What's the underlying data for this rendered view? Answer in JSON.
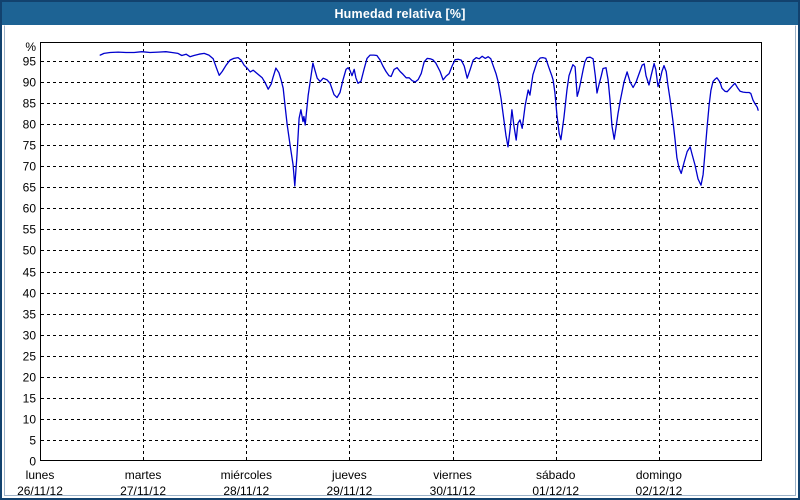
{
  "window": {
    "title": "Humedad relativa [%]"
  },
  "colors": {
    "title_bar_bg": "#1d6394",
    "frame_border": "#12426e",
    "inner_edge": "#9db3c9",
    "grid": "#000000",
    "text": "#000000",
    "series_line": "#0000cd"
  },
  "chart_data": {
    "type": "line",
    "title": "Humedad relativa [%]",
    "ylabel": "%",
    "ylim": [
      0,
      99.5
    ],
    "ytick_step": 5,
    "yticks": [
      0,
      5,
      10,
      15,
      20,
      25,
      30,
      35,
      40,
      45,
      50,
      55,
      60,
      65,
      70,
      75,
      80,
      85,
      90,
      95
    ],
    "grid": "dashed",
    "legend": "none",
    "x_hours_range": [
      0,
      168
    ],
    "x_days": [
      {
        "name": "lunes",
        "date": "26/11/12"
      },
      {
        "name": "martes",
        "date": "27/11/12"
      },
      {
        "name": "miércoles",
        "date": "28/11/12"
      },
      {
        "name": "jueves",
        "date": "29/11/12"
      },
      {
        "name": "viernes",
        "date": "30/11/12"
      },
      {
        "name": "sábado",
        "date": "01/12/12"
      },
      {
        "name": "domingo",
        "date": "02/12/12"
      }
    ],
    "line_color": "#0000cd",
    "series": [
      {
        "name": "Humedad relativa",
        "unit": "%",
        "points": [
          [
            14.0,
            96.4
          ],
          [
            14.9,
            96.8
          ],
          [
            16.3,
            97.0
          ],
          [
            18.2,
            97.1
          ],
          [
            20.0,
            97.0
          ],
          [
            21.9,
            97.0
          ],
          [
            23.7,
            97.2
          ],
          [
            25.6,
            97.0
          ],
          [
            27.5,
            97.1
          ],
          [
            29.3,
            97.2
          ],
          [
            30.7,
            97.0
          ],
          [
            32.1,
            96.8
          ],
          [
            33.0,
            96.3
          ],
          [
            34.0,
            96.6
          ],
          [
            34.9,
            96.0
          ],
          [
            35.8,
            96.3
          ],
          [
            37.0,
            96.6
          ],
          [
            38.2,
            96.8
          ],
          [
            39.3,
            96.4
          ],
          [
            40.3,
            95.5
          ],
          [
            41.0,
            93.5
          ],
          [
            41.7,
            91.6
          ],
          [
            42.4,
            92.5
          ],
          [
            43.3,
            94.0
          ],
          [
            44.2,
            95.2
          ],
          [
            45.1,
            95.6
          ],
          [
            46.1,
            95.8
          ],
          [
            46.8,
            95.2
          ],
          [
            47.5,
            94.0
          ],
          [
            48.2,
            93.3
          ],
          [
            48.9,
            92.4
          ],
          [
            49.6,
            92.8
          ],
          [
            50.3,
            92.2
          ],
          [
            51.0,
            91.6
          ],
          [
            51.7,
            91.0
          ],
          [
            52.4,
            89.8
          ],
          [
            53.1,
            88.3
          ],
          [
            53.8,
            89.5
          ],
          [
            54.2,
            91.0
          ],
          [
            54.9,
            93.3
          ],
          [
            55.6,
            92.2
          ],
          [
            56.1,
            90.5
          ],
          [
            56.6,
            88.5
          ],
          [
            57.0,
            84.5
          ],
          [
            57.5,
            80.0
          ],
          [
            58.2,
            75.0
          ],
          [
            58.9,
            70.3
          ],
          [
            59.3,
            65.3
          ],
          [
            59.8,
            72.7
          ],
          [
            60.3,
            81.4
          ],
          [
            60.7,
            83.4
          ],
          [
            61.2,
            80.6
          ],
          [
            61.4,
            81.8
          ],
          [
            61.7,
            79.8
          ],
          [
            62.4,
            86.9
          ],
          [
            63.1,
            91.7
          ],
          [
            63.5,
            94.5
          ],
          [
            64.5,
            90.9
          ],
          [
            65.2,
            90.1
          ],
          [
            65.9,
            90.9
          ],
          [
            66.8,
            90.5
          ],
          [
            67.5,
            89.7
          ],
          [
            68.4,
            87.0
          ],
          [
            69.1,
            86.3
          ],
          [
            69.8,
            87.5
          ],
          [
            70.5,
            90.5
          ],
          [
            71.2,
            93.0
          ],
          [
            71.7,
            93.4
          ],
          [
            72.1,
            92.8
          ],
          [
            72.6,
            91.5
          ],
          [
            73.1,
            93.0
          ],
          [
            73.5,
            91.0
          ],
          [
            74.0,
            89.7
          ],
          [
            74.7,
            90.2
          ],
          [
            75.4,
            93.0
          ],
          [
            76.1,
            95.6
          ],
          [
            76.8,
            96.4
          ],
          [
            77.7,
            96.4
          ],
          [
            78.4,
            96.3
          ],
          [
            79.1,
            95.3
          ],
          [
            79.8,
            93.8
          ],
          [
            80.5,
            92.5
          ],
          [
            81.2,
            91.5
          ],
          [
            81.7,
            91.3
          ],
          [
            82.4,
            93.0
          ],
          [
            83.1,
            93.4
          ],
          [
            83.8,
            92.5
          ],
          [
            84.5,
            91.8
          ],
          [
            85.2,
            91.0
          ],
          [
            85.9,
            91.0
          ],
          [
            86.6,
            90.3
          ],
          [
            87.3,
            90.0
          ],
          [
            88.0,
            90.6
          ],
          [
            88.7,
            92.0
          ],
          [
            89.4,
            94.8
          ],
          [
            90.1,
            95.6
          ],
          [
            90.8,
            95.5
          ],
          [
            91.4,
            95.3
          ],
          [
            92.1,
            94.5
          ],
          [
            93.1,
            92.5
          ],
          [
            93.8,
            90.5
          ],
          [
            94.5,
            91.4
          ],
          [
            95.2,
            92.0
          ],
          [
            95.9,
            93.8
          ],
          [
            96.6,
            95.3
          ],
          [
            97.3,
            95.4
          ],
          [
            98.0,
            95.2
          ],
          [
            98.7,
            93.8
          ],
          [
            99.4,
            90.9
          ],
          [
            100.1,
            93.0
          ],
          [
            100.8,
            95.2
          ],
          [
            101.5,
            95.8
          ],
          [
            102.2,
            95.5
          ],
          [
            102.9,
            96.1
          ],
          [
            103.6,
            95.6
          ],
          [
            104.3,
            96.0
          ],
          [
            104.9,
            95.5
          ],
          [
            105.4,
            94.0
          ],
          [
            106.1,
            92.0
          ],
          [
            106.6,
            90.1
          ],
          [
            107.3,
            86.0
          ],
          [
            108.0,
            80.6
          ],
          [
            108.4,
            77.4
          ],
          [
            108.9,
            74.6
          ],
          [
            109.4,
            79.0
          ],
          [
            109.8,
            83.4
          ],
          [
            110.3,
            79.5
          ],
          [
            110.8,
            76.2
          ],
          [
            111.2,
            80.2
          ],
          [
            111.7,
            81.0
          ],
          [
            112.2,
            79.0
          ],
          [
            112.9,
            84.5
          ],
          [
            113.6,
            88.1
          ],
          [
            114.0,
            86.9
          ],
          [
            114.7,
            91.7
          ],
          [
            115.7,
            94.9
          ],
          [
            116.4,
            95.7
          ],
          [
            117.0,
            95.8
          ],
          [
            117.7,
            95.6
          ],
          [
            118.4,
            93.5
          ],
          [
            119.1,
            91.5
          ],
          [
            119.4,
            90.5
          ],
          [
            119.8,
            87.5
          ],
          [
            120.3,
            82.0
          ],
          [
            120.8,
            77.8
          ],
          [
            121.2,
            76.3
          ],
          [
            121.9,
            81.5
          ],
          [
            122.6,
            88.0
          ],
          [
            123.1,
            91.5
          ],
          [
            123.6,
            93.0
          ],
          [
            124.0,
            94.1
          ],
          [
            124.5,
            93.6
          ],
          [
            125.0,
            86.6
          ],
          [
            125.4,
            88.0
          ],
          [
            125.9,
            90.5
          ],
          [
            126.4,
            93.0
          ],
          [
            126.8,
            94.8
          ],
          [
            127.3,
            95.8
          ],
          [
            128.0,
            95.9
          ],
          [
            128.7,
            95.5
          ],
          [
            129.2,
            91.5
          ],
          [
            129.6,
            87.4
          ],
          [
            130.1,
            89.5
          ],
          [
            130.6,
            91.5
          ],
          [
            131.0,
            93.2
          ],
          [
            131.7,
            93.4
          ],
          [
            132.2,
            90.5
          ],
          [
            132.6,
            86.0
          ],
          [
            133.1,
            79.5
          ],
          [
            133.6,
            76.4
          ],
          [
            134.0,
            79.0
          ],
          [
            134.5,
            82.5
          ],
          [
            135.0,
            85.5
          ],
          [
            135.4,
            87.5
          ],
          [
            135.9,
            90.0
          ],
          [
            136.6,
            92.4
          ],
          [
            137.3,
            90.0
          ],
          [
            138.0,
            88.7
          ],
          [
            138.7,
            90.0
          ],
          [
            139.4,
            92.0
          ],
          [
            140.1,
            94.0
          ],
          [
            140.6,
            94.3
          ],
          [
            141.0,
            91.5
          ],
          [
            141.7,
            89.3
          ],
          [
            142.2,
            91.5
          ],
          [
            142.9,
            94.4
          ],
          [
            143.3,
            93.0
          ],
          [
            143.8,
            88.9
          ],
          [
            144.3,
            90.5
          ],
          [
            144.7,
            92.5
          ],
          [
            145.2,
            93.9
          ],
          [
            145.7,
            92.5
          ],
          [
            146.1,
            89.3
          ],
          [
            146.6,
            86.0
          ],
          [
            147.3,
            80.6
          ],
          [
            147.8,
            76.0
          ],
          [
            148.2,
            72.0
          ],
          [
            148.7,
            69.5
          ],
          [
            149.2,
            68.3
          ],
          [
            149.9,
            71.0
          ],
          [
            150.6,
            73.5
          ],
          [
            151.3,
            74.6
          ],
          [
            151.7,
            73.0
          ],
          [
            152.4,
            70.3
          ],
          [
            153.1,
            67.0
          ],
          [
            153.8,
            65.5
          ],
          [
            154.3,
            68.0
          ],
          [
            154.7,
            72.7
          ],
          [
            155.2,
            79.0
          ],
          [
            155.7,
            84.5
          ],
          [
            156.1,
            88.0
          ],
          [
            156.6,
            90.1
          ],
          [
            157.1,
            90.7
          ],
          [
            157.5,
            91.0
          ],
          [
            158.2,
            90.0
          ],
          [
            158.7,
            88.5
          ],
          [
            159.4,
            87.8
          ],
          [
            159.9,
            87.7
          ],
          [
            160.6,
            88.5
          ],
          [
            161.3,
            89.3
          ],
          [
            161.7,
            89.7
          ],
          [
            162.4,
            88.5
          ],
          [
            162.9,
            87.8
          ],
          [
            163.6,
            87.6
          ],
          [
            164.3,
            87.5
          ],
          [
            165.0,
            87.5
          ],
          [
            165.4,
            87.3
          ],
          [
            165.9,
            85.7
          ],
          [
            166.4,
            84.8
          ],
          [
            166.9,
            84.0
          ],
          [
            167.1,
            83.3
          ]
        ]
      }
    ]
  }
}
